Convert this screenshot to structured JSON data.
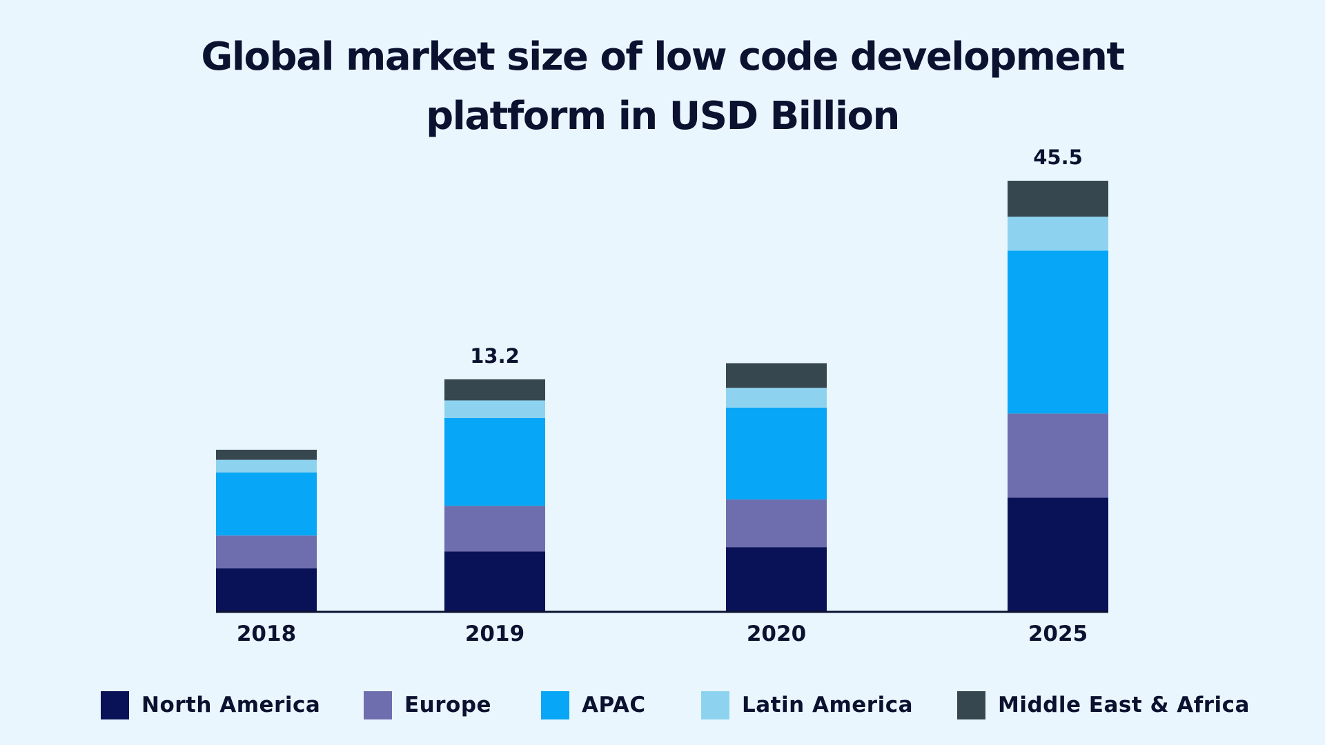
{
  "chart_data": {
    "type": "bar",
    "stacked": true,
    "title": "Global market size of low code development platform in USD Billion",
    "title_lines": [
      "Global market size of low code development",
      "platform in USD Billion"
    ],
    "categories": [
      "2018",
      "2019",
      "2020",
      "2025"
    ],
    "series": [
      {
        "name": "North America",
        "color": "#0A1257",
        "values": [
          1.7,
          3.4,
          3.9,
          12.0
        ]
      },
      {
        "name": "Europe",
        "color": "#6E6EAE",
        "values": [
          1.3,
          2.6,
          2.9,
          8.9
        ]
      },
      {
        "name": "APAC",
        "color": "#08A6F6",
        "values": [
          2.5,
          5.0,
          5.6,
          17.2
        ]
      },
      {
        "name": "Latin America",
        "color": "#8DD3F0",
        "values": [
          0.5,
          1.0,
          1.2,
          3.6
        ]
      },
      {
        "name": "Middle East & Africa",
        "color": "#37474F",
        "values": [
          0.4,
          1.2,
          1.5,
          3.8
        ]
      }
    ],
    "data_labels": [
      "",
      "13.2",
      "",
      "45.5"
    ],
    "xlabel": "",
    "ylabel": "",
    "y_axis_visible": false,
    "grid": false,
    "legend_position": "bottom",
    "background": "#EAF6FE"
  }
}
